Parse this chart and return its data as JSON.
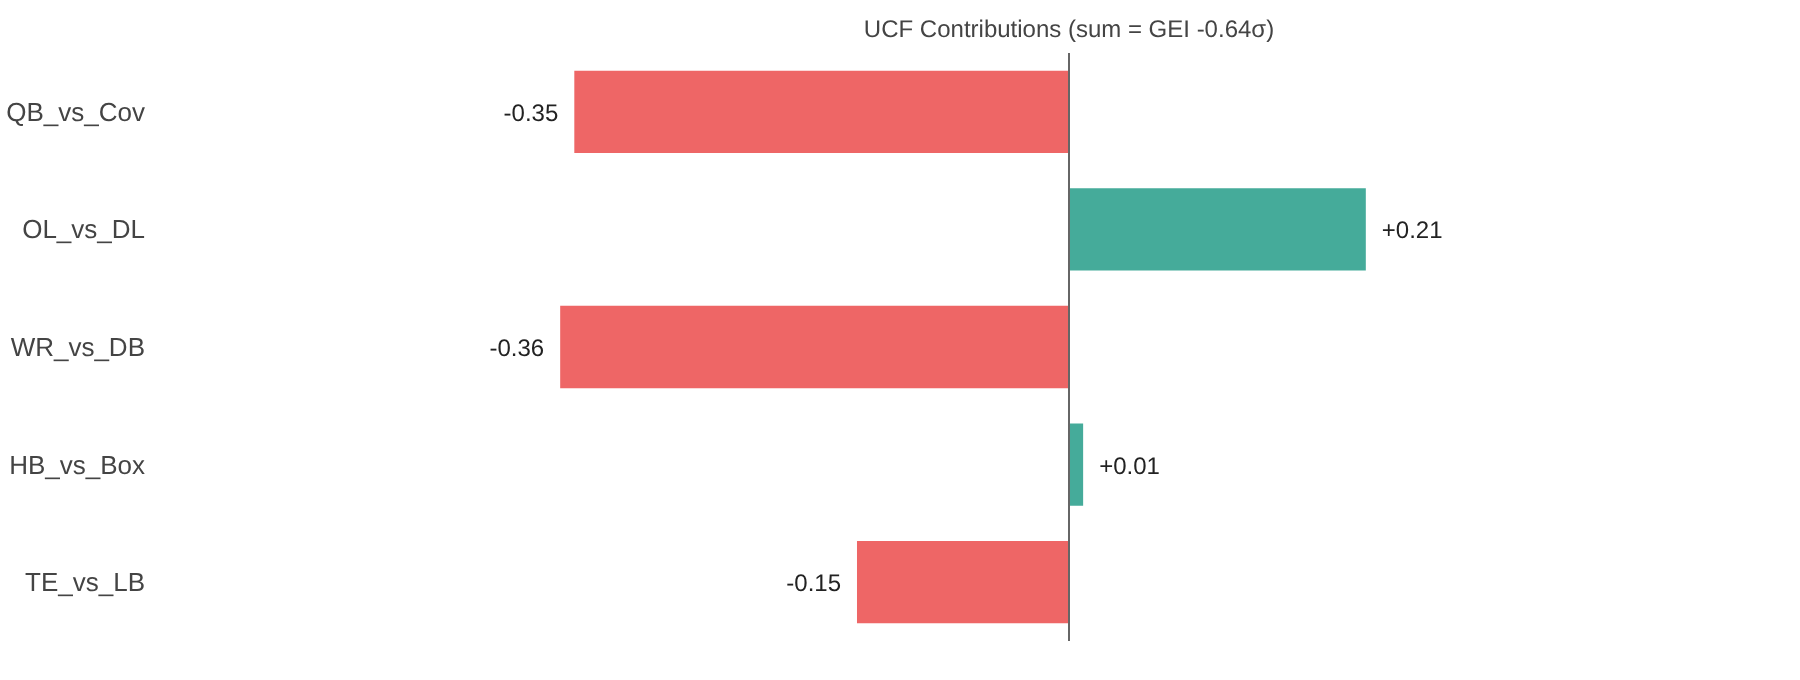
{
  "chart_data": {
    "type": "bar",
    "orientation": "horizontal",
    "title": "UCF Contributions (sum = GEI -0.64σ)",
    "categories": [
      "QB_vs_Cov",
      "OL_vs_DL",
      "WR_vs_DB",
      "HB_vs_Box",
      "TE_vs_LB"
    ],
    "values": [
      -0.35,
      0.21,
      -0.36,
      0.01,
      -0.15
    ],
    "colors": [
      "#ee6666",
      "#45ab9a",
      "#ee6666",
      "#45ab9a",
      "#ee6666"
    ],
    "value_labels": [
      "-0.35",
      "+0.21",
      "-0.36",
      "+0.01",
      "-0.15"
    ]
  }
}
